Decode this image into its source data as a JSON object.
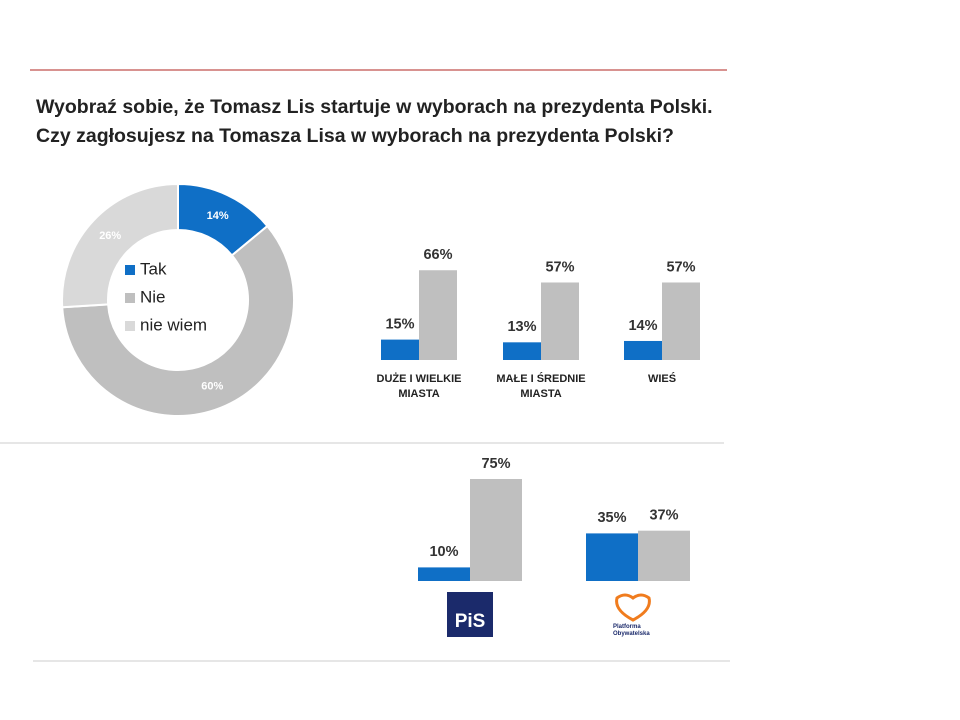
{
  "title_lines": [
    "Wyobraź sobie, że Tomasz Lis startuje w wyborach na prezydenta Polski.",
    "Czy zagłosujesz na Tomasza Lisa w wyborach na prezydenta Polski?"
  ],
  "chart_data": [
    {
      "type": "pie",
      "donut": true,
      "categories": [
        "Tak",
        "Nie",
        "nie wiem"
      ],
      "values": [
        14,
        60,
        26
      ],
      "value_labels": [
        "14%",
        "60%",
        "26%"
      ],
      "colors": [
        "#0f6fc6",
        "#bfbfbf",
        "#d9d9d9"
      ],
      "legend": "center"
    },
    {
      "type": "bar",
      "categories": [
        "DUŻE I WIELKIE MIASTA",
        "MAŁE I ŚREDNIE MIASTA",
        "WIEŚ"
      ],
      "series": [
        {
          "name": "Tak",
          "color": "#0f6fc6",
          "values": [
            15,
            13,
            14
          ],
          "value_labels": [
            "15%",
            "13%",
            "14%"
          ]
        },
        {
          "name": "Nie",
          "color": "#bfbfbf",
          "values": [
            66,
            57,
            57
          ],
          "value_labels": [
            "66%",
            "57%",
            "57%"
          ]
        }
      ]
    },
    {
      "type": "bar",
      "categories": [
        "PiS",
        "Platforma Obywatelska"
      ],
      "series": [
        {
          "name": "Tak",
          "color": "#0f6fc6",
          "values": [
            10,
            35
          ],
          "value_labels": [
            "10%",
            "35%"
          ]
        },
        {
          "name": "Nie",
          "color": "#bfbfbf",
          "values": [
            75,
            37
          ],
          "value_labels": [
            "75%",
            "37%"
          ]
        }
      ]
    }
  ]
}
